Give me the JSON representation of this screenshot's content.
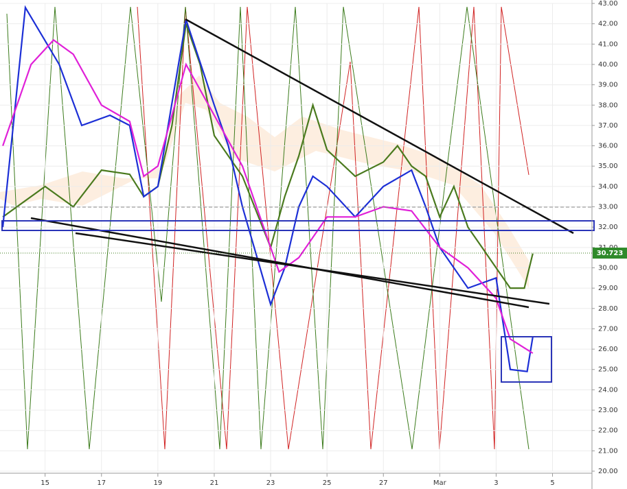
{
  "chart_data": {
    "type": "line",
    "xlim": [
      -1.6,
      19.4
    ],
    "xticks": [
      {
        "value": 0,
        "label": "15"
      },
      {
        "value": 2,
        "label": "17"
      },
      {
        "value": 4,
        "label": "19"
      },
      {
        "value": 6,
        "label": "21"
      },
      {
        "value": 8,
        "label": "23"
      },
      {
        "value": 10,
        "label": "25"
      },
      {
        "value": 12,
        "label": "27"
      },
      {
        "value": 14,
        "label": "Mar"
      },
      {
        "value": 16,
        "label": "3"
      },
      {
        "value": 18,
        "label": "5"
      }
    ],
    "ylim": [
      20,
      43
    ],
    "yticks": [
      {
        "value": 20,
        "label": "20.00"
      },
      {
        "value": 21,
        "label": "21.00"
      },
      {
        "value": 22,
        "label": "22.00"
      },
      {
        "value": 23,
        "label": "23.00"
      },
      {
        "value": 24,
        "label": "24.00"
      },
      {
        "value": 25,
        "label": "25.00"
      },
      {
        "value": 26,
        "label": "26.00"
      },
      {
        "value": 27,
        "label": "27.00"
      },
      {
        "value": 28,
        "label": "28.00"
      },
      {
        "value": 29,
        "label": "29.00"
      },
      {
        "value": 30,
        "label": "30.00"
      },
      {
        "value": 31,
        "label": "31.00"
      },
      {
        "value": 32,
        "label": "32.00"
      },
      {
        "value": 33,
        "label": "33.00"
      },
      {
        "value": 34,
        "label": "34.00"
      },
      {
        "value": 35,
        "label": "35.00"
      },
      {
        "value": 36,
        "label": "36.00"
      },
      {
        "value": 37,
        "label": "37.00"
      },
      {
        "value": 38,
        "label": "38.00"
      },
      {
        "value": 39,
        "label": "39.00"
      },
      {
        "value": 40,
        "label": "40.00"
      },
      {
        "value": 41,
        "label": "41.00"
      },
      {
        "value": 42,
        "label": "42.00"
      },
      {
        "value": 43,
        "label": "43.00"
      }
    ],
    "last_price": 30.723,
    "series": [
      {
        "color": "#4a7a1e",
        "x": [
          -1.5,
          0,
          1,
          2,
          3,
          3.5,
          4,
          4.5,
          5,
          5.5,
          6,
          7,
          8,
          8.5,
          9,
          9.5,
          10,
          11,
          12,
          12.5,
          13,
          13.5,
          14,
          14.5,
          15,
          15.5,
          16,
          16.5,
          17,
          17.3
        ],
        "values": [
          32.5,
          34,
          33,
          34.8,
          34.6,
          33.5,
          34,
          37,
          42,
          40,
          36.5,
          34.5,
          31,
          33.5,
          35.5,
          38,
          35.8,
          34.5,
          35.2,
          36,
          35,
          34.5,
          32.5,
          34,
          32,
          31,
          30,
          29,
          29,
          30.7
        ]
      },
      {
        "color": "#1c2fd6",
        "x": [
          -1.5,
          -0.7,
          0.5,
          1.3,
          2.3,
          3,
          3.5,
          4,
          5,
          6,
          6.5,
          7,
          8,
          8.5,
          9,
          9.5,
          10,
          11,
          12,
          13,
          13.5,
          14,
          15,
          16,
          16.5,
          17.1,
          17.3
        ],
        "values": [
          32,
          42.8,
          40,
          37,
          37.5,
          37,
          33.5,
          34,
          42.2,
          38,
          36,
          33,
          28.2,
          30,
          33,
          34.5,
          34,
          32.5,
          34,
          34.8,
          33,
          31,
          29,
          29.5,
          25,
          24.9,
          26.6
        ]
      },
      {
        "color": "#e020d8",
        "x": [
          -1.5,
          -0.5,
          0.3,
          1,
          2,
          3,
          3.5,
          4,
          5,
          6,
          7,
          8,
          8.3,
          9,
          10,
          11,
          12,
          13,
          14,
          15,
          16,
          16.5,
          17.3
        ],
        "values": [
          36,
          40,
          41.2,
          40.5,
          38,
          37.2,
          34.5,
          35,
          40,
          37.5,
          35,
          31,
          29.8,
          30.5,
          32.5,
          32.5,
          33,
          32.8,
          31,
          30,
          28.5,
          26.5,
          25.8
        ]
      }
    ]
  }
}
